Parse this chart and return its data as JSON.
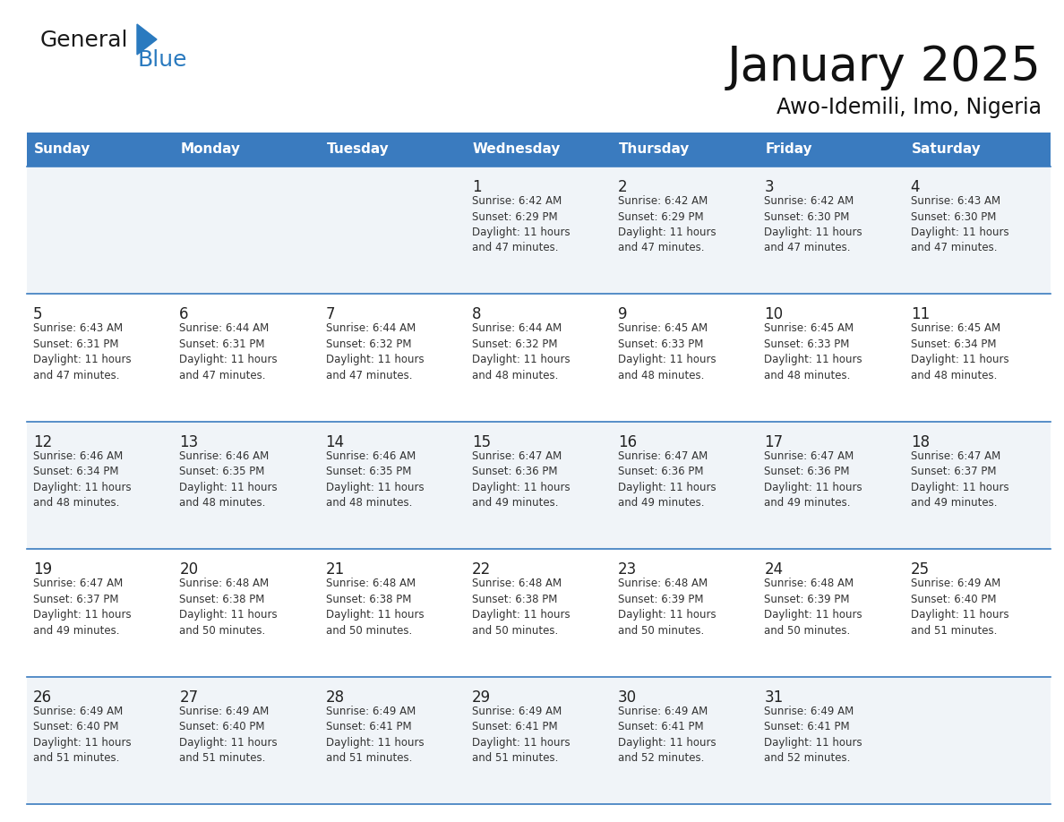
{
  "title": "January 2025",
  "subtitle": "Awo-Idemili, Imo, Nigeria",
  "header_bg_color": "#3a7bbf",
  "header_text_color": "#ffffff",
  "day_names": [
    "Sunday",
    "Monday",
    "Tuesday",
    "Wednesday",
    "Thursday",
    "Friday",
    "Saturday"
  ],
  "bg_color": "#ffffff",
  "row_colors": [
    "#f0f4f8",
    "#ffffff",
    "#f0f4f8",
    "#ffffff",
    "#f0f4f8"
  ],
  "cell_text_color": "#333333",
  "day_num_color": "#222222",
  "grid_color": "#3a7bbf",
  "calendar": [
    [
      {
        "day": "",
        "info": ""
      },
      {
        "day": "",
        "info": ""
      },
      {
        "day": "",
        "info": ""
      },
      {
        "day": "1",
        "info": "Sunrise: 6:42 AM\nSunset: 6:29 PM\nDaylight: 11 hours\nand 47 minutes."
      },
      {
        "day": "2",
        "info": "Sunrise: 6:42 AM\nSunset: 6:29 PM\nDaylight: 11 hours\nand 47 minutes."
      },
      {
        "day": "3",
        "info": "Sunrise: 6:42 AM\nSunset: 6:30 PM\nDaylight: 11 hours\nand 47 minutes."
      },
      {
        "day": "4",
        "info": "Sunrise: 6:43 AM\nSunset: 6:30 PM\nDaylight: 11 hours\nand 47 minutes."
      }
    ],
    [
      {
        "day": "5",
        "info": "Sunrise: 6:43 AM\nSunset: 6:31 PM\nDaylight: 11 hours\nand 47 minutes."
      },
      {
        "day": "6",
        "info": "Sunrise: 6:44 AM\nSunset: 6:31 PM\nDaylight: 11 hours\nand 47 minutes."
      },
      {
        "day": "7",
        "info": "Sunrise: 6:44 AM\nSunset: 6:32 PM\nDaylight: 11 hours\nand 47 minutes."
      },
      {
        "day": "8",
        "info": "Sunrise: 6:44 AM\nSunset: 6:32 PM\nDaylight: 11 hours\nand 48 minutes."
      },
      {
        "day": "9",
        "info": "Sunrise: 6:45 AM\nSunset: 6:33 PM\nDaylight: 11 hours\nand 48 minutes."
      },
      {
        "day": "10",
        "info": "Sunrise: 6:45 AM\nSunset: 6:33 PM\nDaylight: 11 hours\nand 48 minutes."
      },
      {
        "day": "11",
        "info": "Sunrise: 6:45 AM\nSunset: 6:34 PM\nDaylight: 11 hours\nand 48 minutes."
      }
    ],
    [
      {
        "day": "12",
        "info": "Sunrise: 6:46 AM\nSunset: 6:34 PM\nDaylight: 11 hours\nand 48 minutes."
      },
      {
        "day": "13",
        "info": "Sunrise: 6:46 AM\nSunset: 6:35 PM\nDaylight: 11 hours\nand 48 minutes."
      },
      {
        "day": "14",
        "info": "Sunrise: 6:46 AM\nSunset: 6:35 PM\nDaylight: 11 hours\nand 48 minutes."
      },
      {
        "day": "15",
        "info": "Sunrise: 6:47 AM\nSunset: 6:36 PM\nDaylight: 11 hours\nand 49 minutes."
      },
      {
        "day": "16",
        "info": "Sunrise: 6:47 AM\nSunset: 6:36 PM\nDaylight: 11 hours\nand 49 minutes."
      },
      {
        "day": "17",
        "info": "Sunrise: 6:47 AM\nSunset: 6:36 PM\nDaylight: 11 hours\nand 49 minutes."
      },
      {
        "day": "18",
        "info": "Sunrise: 6:47 AM\nSunset: 6:37 PM\nDaylight: 11 hours\nand 49 minutes."
      }
    ],
    [
      {
        "day": "19",
        "info": "Sunrise: 6:47 AM\nSunset: 6:37 PM\nDaylight: 11 hours\nand 49 minutes."
      },
      {
        "day": "20",
        "info": "Sunrise: 6:48 AM\nSunset: 6:38 PM\nDaylight: 11 hours\nand 50 minutes."
      },
      {
        "day": "21",
        "info": "Sunrise: 6:48 AM\nSunset: 6:38 PM\nDaylight: 11 hours\nand 50 minutes."
      },
      {
        "day": "22",
        "info": "Sunrise: 6:48 AM\nSunset: 6:38 PM\nDaylight: 11 hours\nand 50 minutes."
      },
      {
        "day": "23",
        "info": "Sunrise: 6:48 AM\nSunset: 6:39 PM\nDaylight: 11 hours\nand 50 minutes."
      },
      {
        "day": "24",
        "info": "Sunrise: 6:48 AM\nSunset: 6:39 PM\nDaylight: 11 hours\nand 50 minutes."
      },
      {
        "day": "25",
        "info": "Sunrise: 6:49 AM\nSunset: 6:40 PM\nDaylight: 11 hours\nand 51 minutes."
      }
    ],
    [
      {
        "day": "26",
        "info": "Sunrise: 6:49 AM\nSunset: 6:40 PM\nDaylight: 11 hours\nand 51 minutes."
      },
      {
        "day": "27",
        "info": "Sunrise: 6:49 AM\nSunset: 6:40 PM\nDaylight: 11 hours\nand 51 minutes."
      },
      {
        "day": "28",
        "info": "Sunrise: 6:49 AM\nSunset: 6:41 PM\nDaylight: 11 hours\nand 51 minutes."
      },
      {
        "day": "29",
        "info": "Sunrise: 6:49 AM\nSunset: 6:41 PM\nDaylight: 11 hours\nand 51 minutes."
      },
      {
        "day": "30",
        "info": "Sunrise: 6:49 AM\nSunset: 6:41 PM\nDaylight: 11 hours\nand 52 minutes."
      },
      {
        "day": "31",
        "info": "Sunrise: 6:49 AM\nSunset: 6:41 PM\nDaylight: 11 hours\nand 52 minutes."
      },
      {
        "day": "",
        "info": ""
      }
    ]
  ],
  "logo_general_color": "#1a1a1a",
  "logo_blue_color": "#2a7abf",
  "fig_width": 11.88,
  "fig_height": 9.18,
  "dpi": 100
}
